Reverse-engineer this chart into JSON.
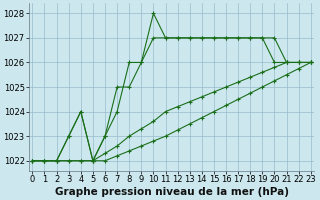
{
  "title": "Graphe pression niveau de la mer (hPa)",
  "bg_color": "#cce8ee",
  "grid_color": "#99bbcc",
  "line_color": "#1a6e1a",
  "marker": "+",
  "xlim": [
    -0.3,
    23.3
  ],
  "ylim": [
    1021.6,
    1028.4
  ],
  "yticks": [
    1022,
    1023,
    1024,
    1025,
    1026,
    1027,
    1028
  ],
  "xticks": [
    0,
    1,
    2,
    3,
    4,
    5,
    6,
    7,
    8,
    9,
    10,
    11,
    12,
    13,
    14,
    15,
    16,
    17,
    18,
    19,
    20,
    21,
    22,
    23
  ],
  "series": [
    [
      1022,
      1022,
      1022,
      1023,
      1024,
      1022,
      1023,
      1025,
      1025,
      1026,
      1028,
      1027,
      1027,
      1027,
      1027,
      1027,
      1027,
      1027,
      1027,
      1027,
      1027,
      1026,
      1026,
      1026
    ],
    [
      1022,
      1022,
      1022,
      1023,
      1024,
      1022,
      1023,
      1024,
      1026,
      1026,
      1027,
      1027,
      1027,
      1027,
      1027,
      1027,
      1027,
      1027,
      1027,
      1027,
      1026,
      1026,
      1026,
      1026
    ],
    [
      1022,
      1022,
      1022,
      1022,
      1022,
      1022,
      1022.3,
      1022.6,
      1023,
      1023.3,
      1023.6,
      1024,
      1024.2,
      1024.4,
      1024.6,
      1024.8,
      1025,
      1025.2,
      1025.4,
      1025.6,
      1025.8,
      1026,
      1026,
      1026
    ],
    [
      1022,
      1022,
      1022,
      1022,
      1022,
      1022,
      1022,
      1022.2,
      1022.4,
      1022.6,
      1022.8,
      1023,
      1023.25,
      1023.5,
      1023.75,
      1024,
      1024.25,
      1024.5,
      1024.75,
      1025,
      1025.25,
      1025.5,
      1025.75,
      1026
    ]
  ],
  "tick_fontsize": 6.0,
  "title_fontsize": 7.5,
  "linewidth": 0.8,
  "markersize": 3.0
}
